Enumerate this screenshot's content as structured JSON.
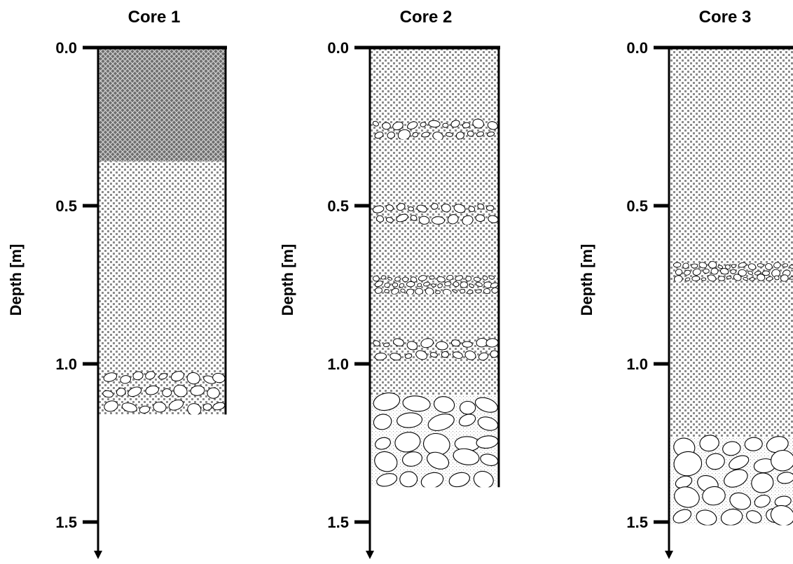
{
  "axis_label": "Depth [m]",
  "tick_labels": [
    "0.0",
    "0.5",
    "1.0",
    "1.5"
  ],
  "colors": {
    "ink": "#000000",
    "dark_fill": "#6e6e6e",
    "sand_dot": "#8c8c8c",
    "pebble_fill": "#ffffff",
    "matrix_dot": "#9a9a9a"
  },
  "cores": [
    {
      "title": "Core 1",
      "bottom_depth": 1.16,
      "layers": [
        {
          "type": "dark-cross-hatch",
          "from": 0.0,
          "to": 0.36
        },
        {
          "type": "sand-dots",
          "from": 0.36,
          "to": 1.02
        },
        {
          "type": "gravel-small",
          "from": 1.02,
          "to": 1.16
        }
      ]
    },
    {
      "title": "Core 2",
      "bottom_depth": 1.39,
      "layers": [
        {
          "type": "sand-dots",
          "from": 0.0,
          "to": 0.23
        },
        {
          "type": "gravel-lens",
          "from": 0.23,
          "to": 0.29
        },
        {
          "type": "sand-dots",
          "from": 0.29,
          "to": 0.49
        },
        {
          "type": "gravel-lens",
          "from": 0.49,
          "to": 0.56
        },
        {
          "type": "sand-dots",
          "from": 0.56,
          "to": 0.72
        },
        {
          "type": "gravel-lens-fine",
          "from": 0.72,
          "to": 0.78
        },
        {
          "type": "sand-dots",
          "from": 0.78,
          "to": 0.92
        },
        {
          "type": "gravel-lens",
          "from": 0.92,
          "to": 0.99
        },
        {
          "type": "sand-dots",
          "from": 0.99,
          "to": 1.1
        },
        {
          "type": "cobbles",
          "from": 1.1,
          "to": 1.39
        }
      ]
    },
    {
      "title": "Core 3",
      "bottom_depth": 1.51,
      "layers": [
        {
          "type": "sand-dots",
          "from": 0.0,
          "to": 0.68
        },
        {
          "type": "gravel-lens-fine",
          "from": 0.68,
          "to": 0.74
        },
        {
          "type": "sand-dots",
          "from": 0.74,
          "to": 1.23
        },
        {
          "type": "cobbles",
          "from": 1.23,
          "to": 1.51
        }
      ]
    }
  ]
}
